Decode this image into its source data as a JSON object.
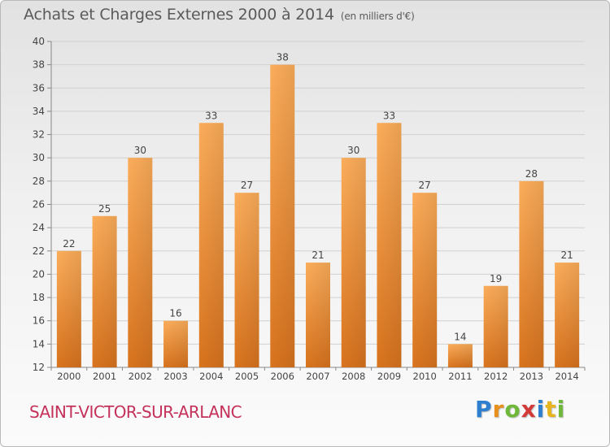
{
  "header": {
    "title": "Achats et Charges Externes 2000 à 2014",
    "unit": "(en milliers d'€)"
  },
  "footer": {
    "commune": "SAINT-VICTOR-SUR-ARLANC",
    "logo": [
      "P",
      "r",
      "o",
      "x",
      "i",
      "t",
      "i"
    ]
  },
  "colors": {
    "bar_light": "#f9a24a",
    "bar_dark": "#d9741f",
    "commune": "#c4325b"
  },
  "chart_data": {
    "type": "bar",
    "title": "Achats et Charges Externes 2000 à 2014",
    "subtitle": "(en milliers d'€)",
    "categories": [
      "2000",
      "2001",
      "2002",
      "2003",
      "2004",
      "2005",
      "2006",
      "2007",
      "2008",
      "2009",
      "2010",
      "2011",
      "2012",
      "2013",
      "2014"
    ],
    "values": [
      22,
      25,
      30,
      16,
      33,
      27,
      38,
      21,
      30,
      33,
      27,
      14,
      19,
      28,
      21
    ],
    "ylim": [
      12,
      40
    ],
    "yticks": [
      12,
      14,
      16,
      18,
      20,
      22,
      24,
      26,
      28,
      30,
      32,
      34,
      36,
      38,
      40
    ],
    "grid": true,
    "data_labels": true
  }
}
